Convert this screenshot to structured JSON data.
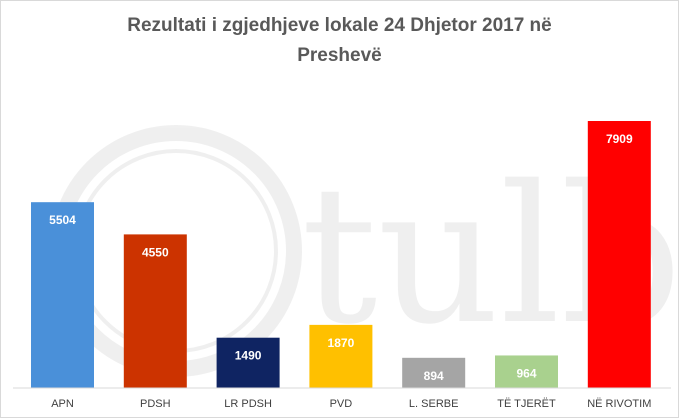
{
  "chart_data": {
    "type": "bar",
    "title_lines": [
      "Rezultati i zgjedhjeve lokale 24 Dhjetor 2017 në",
      "Preshevë"
    ],
    "categories": [
      "APN",
      "PDSH",
      "LR PDSH",
      "PVD",
      "L. SERBE",
      "TË TJERËT",
      "NË RIVOTIM"
    ],
    "values": [
      5504,
      4550,
      1490,
      1870,
      894,
      964,
      7909
    ],
    "value_labels": [
      "5504",
      "4550",
      "1490",
      "1870",
      "894",
      "964",
      "7909"
    ],
    "colors": [
      "#4a90d9",
      "#cc3300",
      "#0f2462",
      "#ffc000",
      "#a5a5a5",
      "#a9d18e",
      "#ff0000"
    ],
    "xlabel": "",
    "ylabel": "",
    "ylim": [
      0,
      8500
    ],
    "grid": false,
    "legend": "none"
  },
  "watermark": {
    "text": "tulb"
  }
}
